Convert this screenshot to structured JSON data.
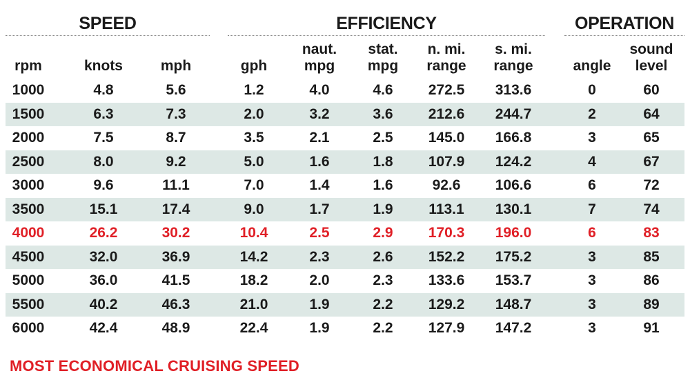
{
  "groups": {
    "speed": "SPEED",
    "efficiency": "EFFICIENCY",
    "operation": "OPERATION"
  },
  "columns": {
    "rpm": [
      "rpm"
    ],
    "knots": [
      "knots"
    ],
    "mph": [
      "mph"
    ],
    "gph": [
      "gph"
    ],
    "naut_mpg": [
      "naut.",
      "mpg"
    ],
    "stat_mpg": [
      "stat.",
      "mpg"
    ],
    "n_mi_range": [
      "n. mi.",
      "range"
    ],
    "s_mi_range": [
      "s. mi.",
      "range"
    ],
    "angle": [
      "angle"
    ],
    "sound_level": [
      "sound",
      "level"
    ]
  },
  "rows": [
    {
      "rpm": "1000",
      "knots": "4.8",
      "mph": "5.6",
      "gph": "1.2",
      "naut_mpg": "4.0",
      "stat_mpg": "4.6",
      "n_mi_range": "272.5",
      "s_mi_range": "313.6",
      "angle": "0",
      "sound_level": "60"
    },
    {
      "rpm": "1500",
      "knots": "6.3",
      "mph": "7.3",
      "gph": "2.0",
      "naut_mpg": "3.2",
      "stat_mpg": "3.6",
      "n_mi_range": "212.6",
      "s_mi_range": "244.7",
      "angle": "2",
      "sound_level": "64"
    },
    {
      "rpm": "2000",
      "knots": "7.5",
      "mph": "8.7",
      "gph": "3.5",
      "naut_mpg": "2.1",
      "stat_mpg": "2.5",
      "n_mi_range": "145.0",
      "s_mi_range": "166.8",
      "angle": "3",
      "sound_level": "65"
    },
    {
      "rpm": "2500",
      "knots": "8.0",
      "mph": "9.2",
      "gph": "5.0",
      "naut_mpg": "1.6",
      "stat_mpg": "1.8",
      "n_mi_range": "107.9",
      "s_mi_range": "124.2",
      "angle": "4",
      "sound_level": "67"
    },
    {
      "rpm": "3000",
      "knots": "9.6",
      "mph": "11.1",
      "gph": "7.0",
      "naut_mpg": "1.4",
      "stat_mpg": "1.6",
      "n_mi_range": "92.6",
      "s_mi_range": "106.6",
      "angle": "6",
      "sound_level": "72"
    },
    {
      "rpm": "3500",
      "knots": "15.1",
      "mph": "17.4",
      "gph": "9.0",
      "naut_mpg": "1.7",
      "stat_mpg": "1.9",
      "n_mi_range": "113.1",
      "s_mi_range": "130.1",
      "angle": "7",
      "sound_level": "74"
    },
    {
      "rpm": "4000",
      "knots": "26.2",
      "mph": "30.2",
      "gph": "10.4",
      "naut_mpg": "2.5",
      "stat_mpg": "2.9",
      "n_mi_range": "170.3",
      "s_mi_range": "196.0",
      "angle": "6",
      "sound_level": "83",
      "highlight": true
    },
    {
      "rpm": "4500",
      "knots": "32.0",
      "mph": "36.9",
      "gph": "14.2",
      "naut_mpg": "2.3",
      "stat_mpg": "2.6",
      "n_mi_range": "152.2",
      "s_mi_range": "175.2",
      "angle": "3",
      "sound_level": "85"
    },
    {
      "rpm": "5000",
      "knots": "36.0",
      "mph": "41.5",
      "gph": "18.2",
      "naut_mpg": "2.0",
      "stat_mpg": "2.3",
      "n_mi_range": "133.6",
      "s_mi_range": "153.7",
      "angle": "3",
      "sound_level": "86"
    },
    {
      "rpm": "5500",
      "knots": "40.2",
      "mph": "46.3",
      "gph": "21.0",
      "naut_mpg": "1.9",
      "stat_mpg": "2.2",
      "n_mi_range": "129.2",
      "s_mi_range": "148.7",
      "angle": "3",
      "sound_level": "89"
    },
    {
      "rpm": "6000",
      "knots": "42.4",
      "mph": "48.9",
      "gph": "22.4",
      "naut_mpg": "1.9",
      "stat_mpg": "2.2",
      "n_mi_range": "127.9",
      "s_mi_range": "147.2",
      "angle": "3",
      "sound_level": "91"
    }
  ],
  "footnote": "MOST ECONOMICAL CRUISING SPEED",
  "colors": {
    "highlight": "#e01f26",
    "shaded_row": "#dde8e5",
    "text": "#1a1a1a"
  }
}
